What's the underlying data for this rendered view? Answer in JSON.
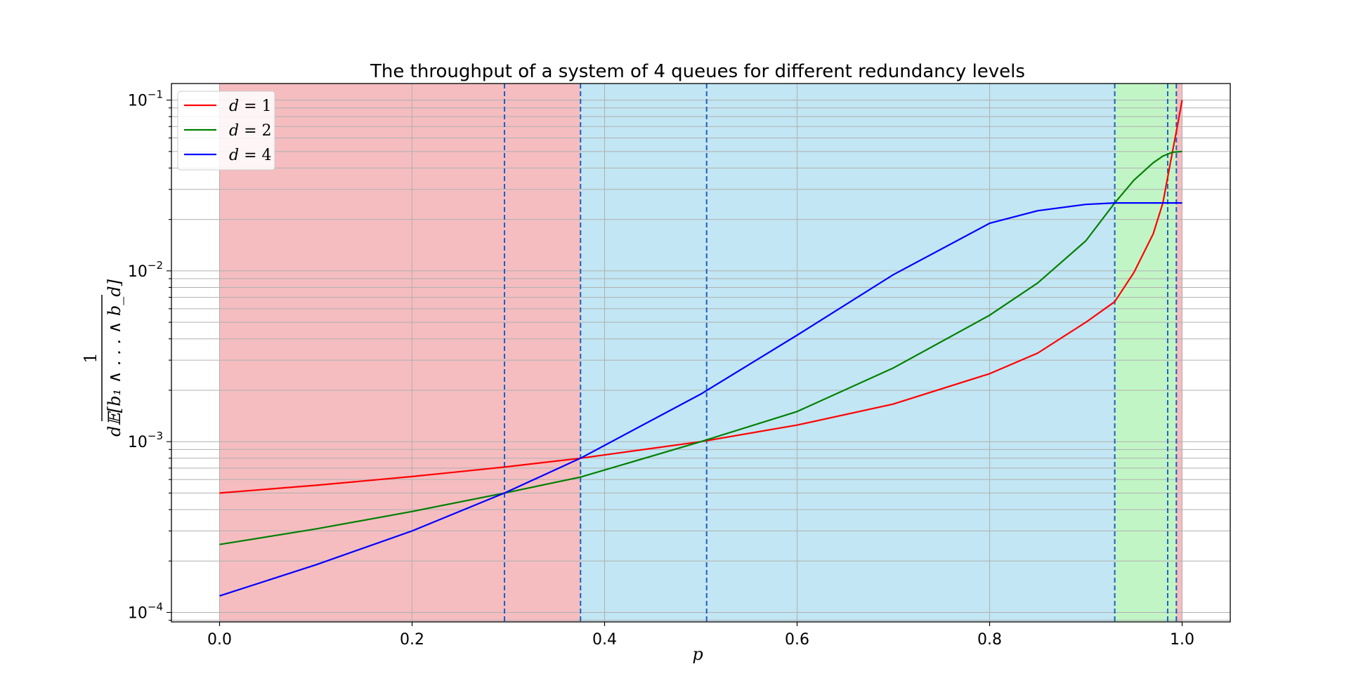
{
  "chart_data": {
    "type": "line",
    "title": "The throughput of a system of 4 queues for different redundancy levels",
    "xlabel": "p",
    "ylabel": {
      "numerator": "1",
      "denominator": "d𝔼[b₁ ∧ . . . ∧ b_d]"
    },
    "x_scale": "linear",
    "y_scale": "log",
    "xlim": [
      -0.05,
      1.05
    ],
    "ylim": [
      8.8e-05,
      0.125
    ],
    "x_ticks": [
      0.0,
      0.2,
      0.4,
      0.6,
      0.8,
      1.0
    ],
    "x_tick_labels": [
      "0.0",
      "0.2",
      "0.4",
      "0.6",
      "0.8",
      "1.0"
    ],
    "y_ticks": [
      {
        "value": 0.1,
        "base": "10",
        "exp": "−1"
      },
      {
        "value": 0.01,
        "base": "10",
        "exp": "−2"
      },
      {
        "value": 0.001,
        "base": "10",
        "exp": "−3"
      },
      {
        "value": 0.0001,
        "base": "10",
        "exp": "−4"
      }
    ],
    "grid": true,
    "legend_position": "top-left",
    "regions": [
      {
        "x0": 0.0,
        "x1": 0.375,
        "color": "#f5bdc0"
      },
      {
        "x0": 0.375,
        "x1": 0.93,
        "color": "#c2e6f3"
      },
      {
        "x0": 0.93,
        "x1": 0.994,
        "color": "#c2f5c6"
      },
      {
        "x0": 0.994,
        "x1": 1.0,
        "color": "#f5bdc0"
      }
    ],
    "vlines": [
      0.296,
      0.375,
      0.506,
      0.93,
      0.985,
      0.994
    ],
    "vline_color": "#1f5fbf",
    "series": [
      {
        "name": "d = 1",
        "label_lhs": "d",
        "label_rhs": "1",
        "color": "#ff0000",
        "x": [
          0.0,
          0.1,
          0.2,
          0.296,
          0.375,
          0.5,
          0.6,
          0.7,
          0.8,
          0.85,
          0.9,
          0.93,
          0.95,
          0.97,
          0.98,
          0.99,
          0.995,
          1.0
        ],
        "y": [
          0.0005,
          0.000555,
          0.000625,
          0.00071,
          0.0008,
          0.001,
          0.00125,
          0.00166,
          0.0025,
          0.0033,
          0.005,
          0.0066,
          0.0098,
          0.0165,
          0.025,
          0.05,
          0.07,
          0.1
        ]
      },
      {
        "name": "d = 2",
        "label_lhs": "d",
        "label_rhs": "2",
        "color": "#008000",
        "x": [
          0.0,
          0.1,
          0.2,
          0.296,
          0.375,
          0.5,
          0.6,
          0.7,
          0.8,
          0.85,
          0.9,
          0.93,
          0.95,
          0.97,
          0.98,
          0.99,
          1.0
        ],
        "y": [
          0.00025,
          0.000308,
          0.00039,
          0.0005,
          0.00062,
          0.001,
          0.0015,
          0.0027,
          0.0055,
          0.0085,
          0.015,
          0.025,
          0.034,
          0.043,
          0.047,
          0.0495,
          0.05
        ]
      },
      {
        "name": "d = 4",
        "label_lhs": "d",
        "label_rhs": "4",
        "color": "#0000ff",
        "x": [
          0.0,
          0.1,
          0.2,
          0.296,
          0.375,
          0.5,
          0.6,
          0.7,
          0.8,
          0.85,
          0.9,
          0.93,
          0.95,
          1.0
        ],
        "y": [
          0.000125,
          0.00019,
          0.0003,
          0.0005,
          0.0008,
          0.0019,
          0.0042,
          0.0095,
          0.019,
          0.0225,
          0.0245,
          0.025,
          0.025,
          0.025
        ]
      }
    ]
  }
}
